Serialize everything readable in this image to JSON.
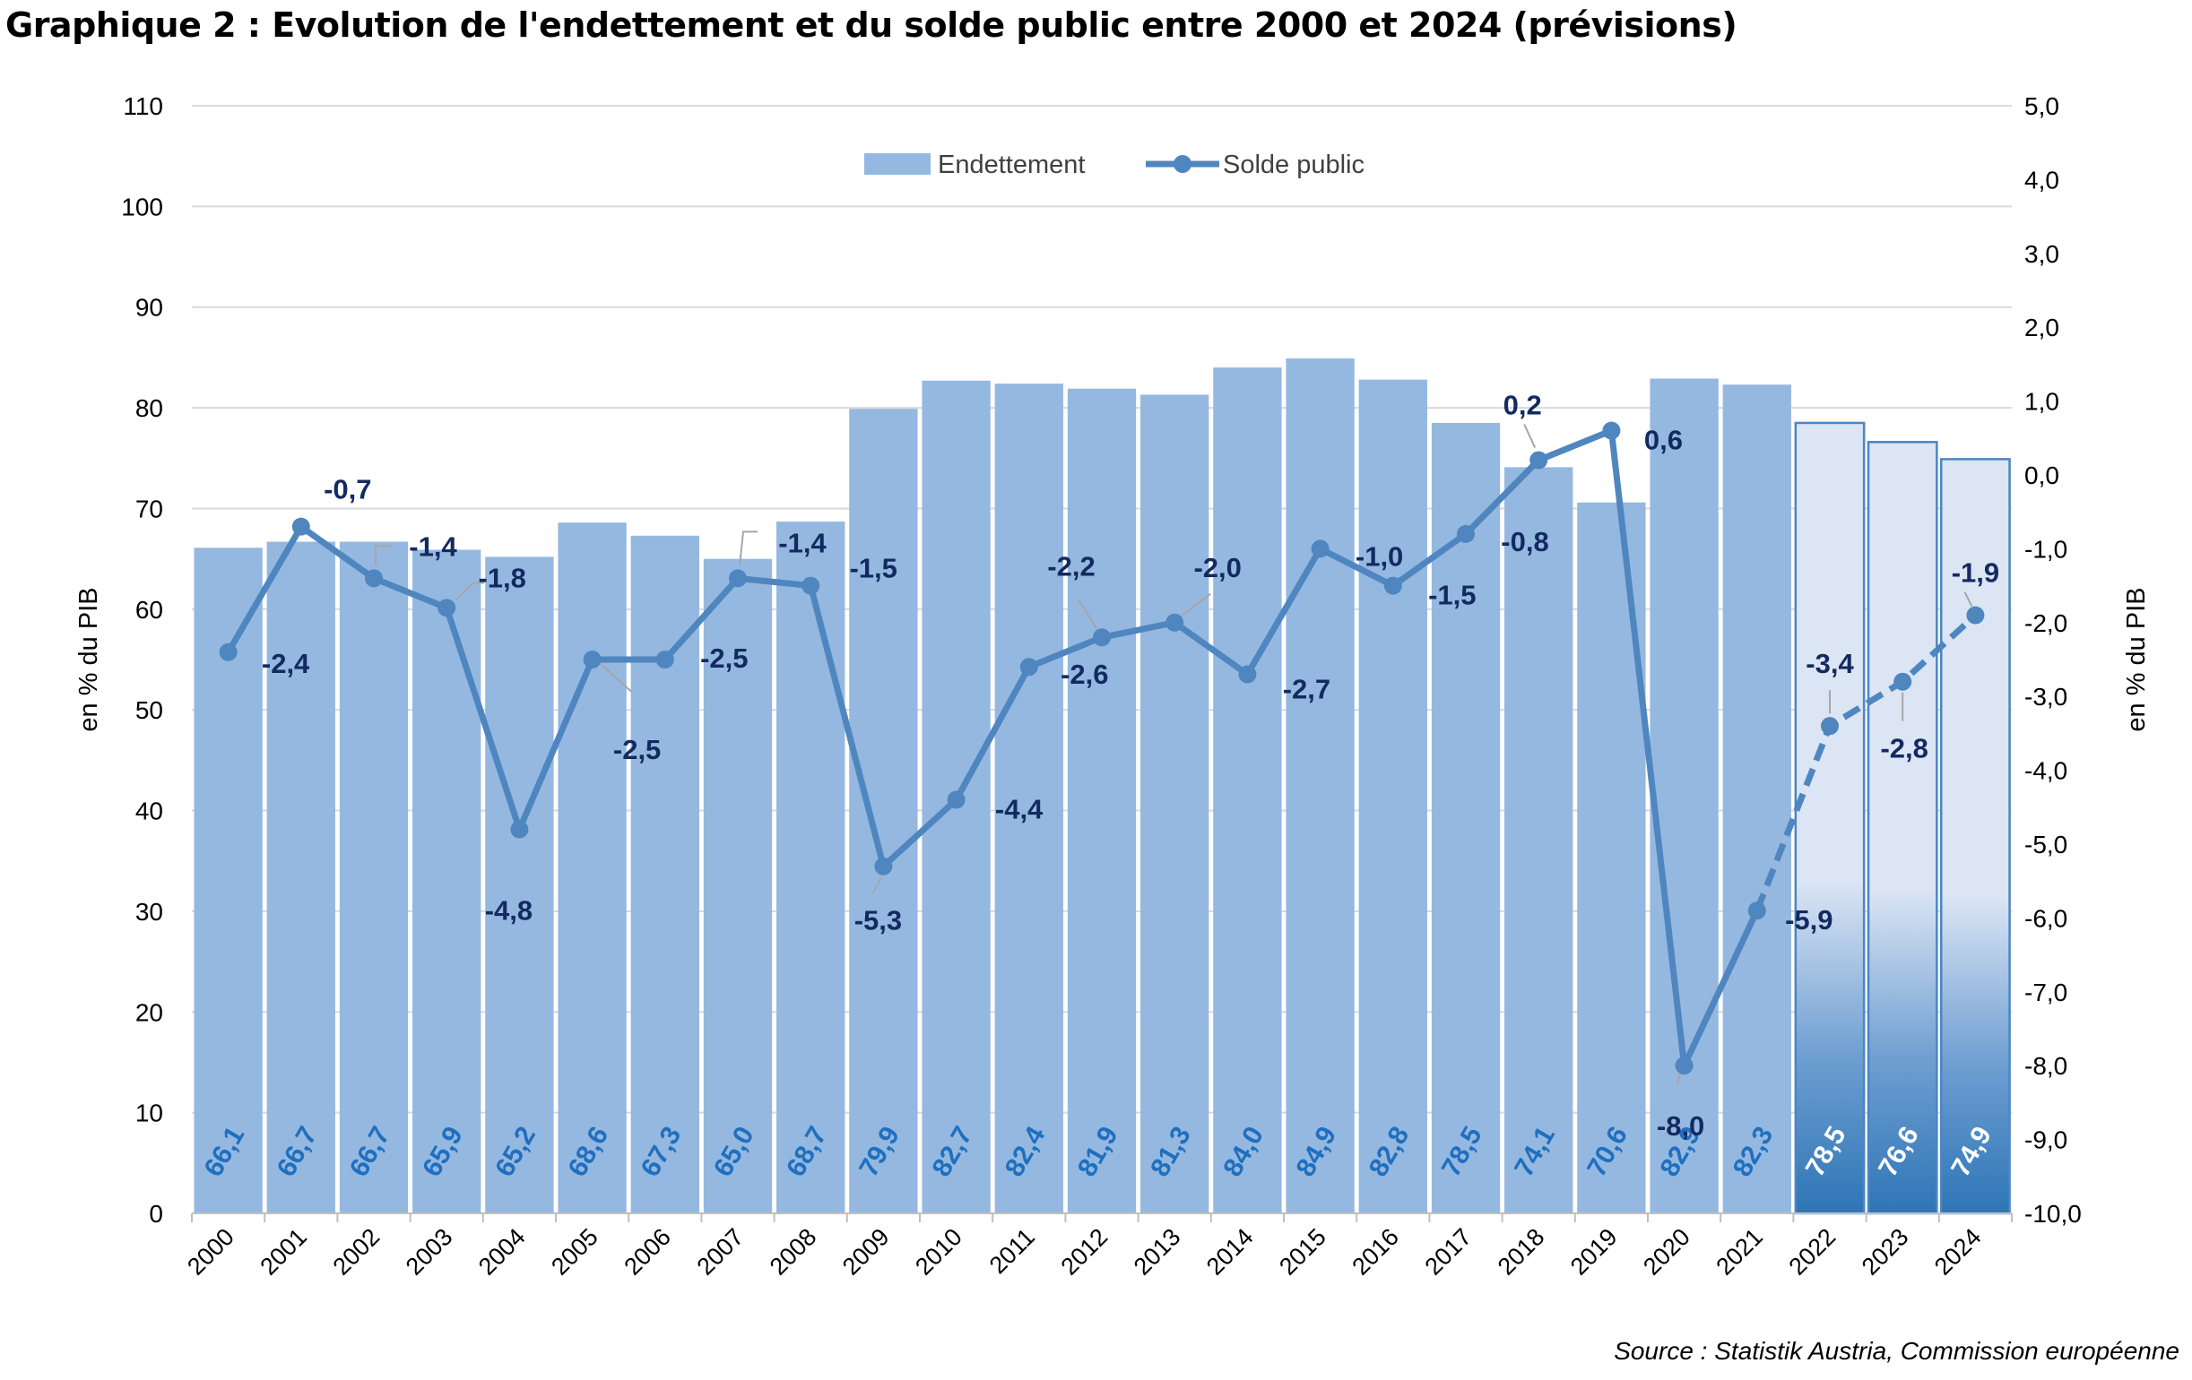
{
  "title": "Graphique 2 : Evolution de l'endettement et du solde public entre 2000 et 2024 (prévisions)",
  "source": "Source : Statistik Austria, Commission européenne",
  "chart_data": {
    "type": "bar+line",
    "categories": [
      "2000",
      "2001",
      "2002",
      "2003",
      "2004",
      "2005",
      "2006",
      "2007",
      "2008",
      "2009",
      "2010",
      "2011",
      "2012",
      "2013",
      "2014",
      "2015",
      "2016",
      "2017",
      "2018",
      "2019",
      "2020",
      "2021",
      "2022",
      "2023",
      "2024"
    ],
    "series": [
      {
        "name": "Endettement",
        "type": "bar",
        "axis": "left",
        "values": [
          66.1,
          66.7,
          66.7,
          65.9,
          65.2,
          68.6,
          67.3,
          65.0,
          68.7,
          79.9,
          82.7,
          82.4,
          81.9,
          81.3,
          84.0,
          84.9,
          82.8,
          78.5,
          74.1,
          70.6,
          82.9,
          82.3,
          78.5,
          76.6,
          74.9
        ],
        "labels": [
          "66,1",
          "66,7",
          "66,7",
          "65,9",
          "65,2",
          "68,6",
          "67,3",
          "65,0",
          "68,7",
          "79,9",
          "82,7",
          "82,4",
          "81,9",
          "81,3",
          "84,0",
          "84,9",
          "82,8",
          "78,5",
          "74,1",
          "70,6",
          "82,9",
          "82,3",
          "78,5",
          "76,6",
          "74,9"
        ],
        "forecast_from": "2022"
      },
      {
        "name": "Solde public",
        "type": "line",
        "axis": "right",
        "values": [
          -2.4,
          -0.7,
          -1.4,
          -1.8,
          -4.8,
          -2.5,
          -2.5,
          -1.4,
          -1.5,
          -5.3,
          -4.4,
          -2.6,
          -2.2,
          -2.0,
          -2.7,
          -1.0,
          -1.5,
          -0.8,
          0.2,
          0.6,
          -8.0,
          -5.9,
          -3.4,
          -2.8,
          -1.9
        ],
        "labels": [
          "-2,4",
          "-0,7",
          "-1,4",
          "-1,8",
          "-4,8",
          "-2,5",
          "-2,5",
          "-1,4",
          "-1,5",
          "-5,3",
          "-4,4",
          "-2,6",
          "-2,2",
          "-2,0",
          "-2,7",
          "-1,0",
          "-1,5",
          "-0,8",
          "0,2",
          "0,6",
          "-8,0",
          "-5,9",
          "-3,4",
          "-2,8",
          "-1,9"
        ],
        "dashed_from": "2021"
      }
    ],
    "y_left": {
      "label": "en % du PIB",
      "min": 0,
      "max": 110,
      "step": 10,
      "ticks": [
        "0",
        "10",
        "20",
        "30",
        "40",
        "50",
        "60",
        "70",
        "80",
        "90",
        "100",
        "110"
      ]
    },
    "y_right": {
      "label": "en % du PIB",
      "min": -10,
      "max": 5,
      "step": 1,
      "ticks": [
        "-10,0",
        "-9,0",
        "-8,0",
        "-7,0",
        "-6,0",
        "-5,0",
        "-4,0",
        "-3,0",
        "-2,0",
        "-1,0",
        "0,0",
        "1,0",
        "2,0",
        "3,0",
        "4,0",
        "5,0"
      ]
    },
    "legend": {
      "placement": "top-center",
      "entries": [
        "Endettement",
        "Solde public"
      ]
    },
    "grid": true,
    "colors": {
      "bar": "#95b8e0",
      "bar_forecast_top": "#dbe5f4",
      "bar_forecast_bottom": "#2e75b6",
      "bar_forecast_border": "#4a86c4",
      "line": "#4f86bf",
      "bar_label": "#1f6fbf",
      "bar_label_forecast": "#ffffff",
      "line_label": "#132a61",
      "grid": "#d9d9d9",
      "leader": "#a6a6a6"
    }
  }
}
